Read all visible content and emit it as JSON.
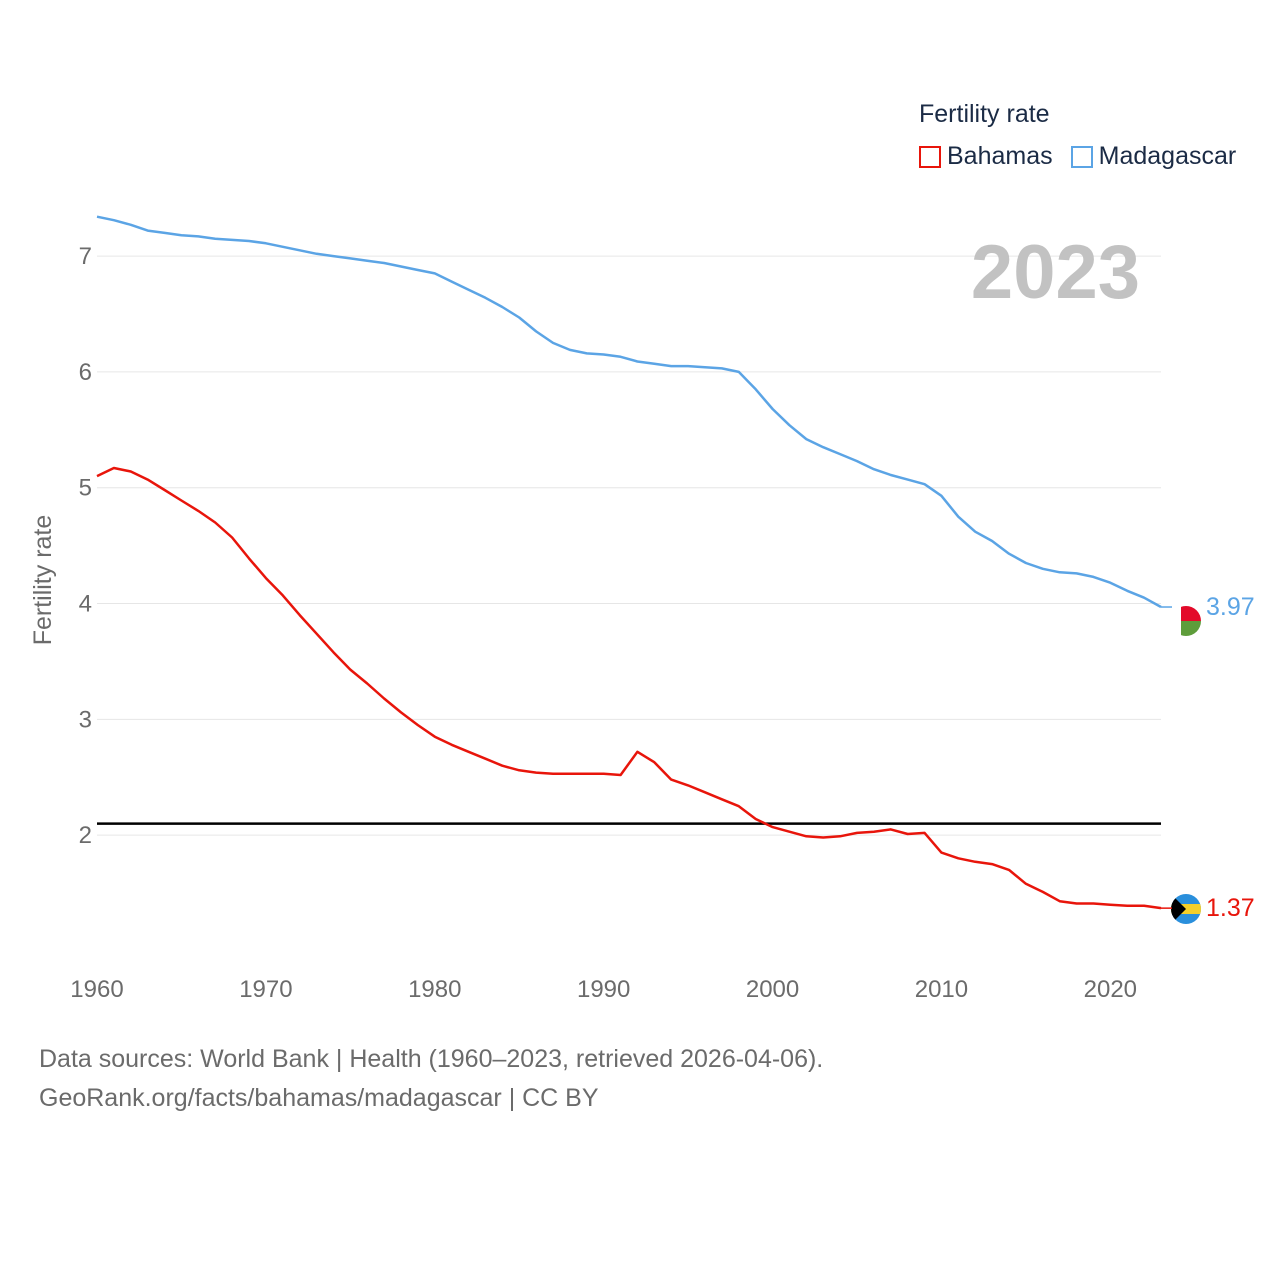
{
  "legend": {
    "title": "Fertility rate",
    "items": [
      {
        "label": "Bahamas",
        "color": "#e8150b"
      },
      {
        "label": "Madagascar",
        "color": "#5ba4e5"
      }
    ]
  },
  "year_label": "2023",
  "footer": {
    "line1": "Data sources: World Bank | Health (1960–2023, retrieved 2026-04-06).",
    "line2": "GeoRank.org/facts/bahamas/madagascar | CC BY"
  },
  "chart_data": {
    "type": "line",
    "ylabel": "Fertility rate",
    "xlim": [
      1960,
      2023
    ],
    "ylim": [
      1.0,
      7.7
    ],
    "x_ticks": [
      1960,
      1970,
      1980,
      1990,
      2000,
      2010,
      2020
    ],
    "y_ticks": [
      2,
      3,
      4,
      5,
      6,
      7
    ],
    "reference_line": {
      "value": 2.1,
      "color": "#000000"
    },
    "end_labels": [
      {
        "series": "Madagascar",
        "value": "3.97",
        "color": "#5ba4e5"
      },
      {
        "series": "Bahamas",
        "value": "1.37",
        "color": "#e8150b"
      }
    ],
    "x": [
      1960,
      1961,
      1962,
      1963,
      1964,
      1965,
      1966,
      1967,
      1968,
      1969,
      1970,
      1971,
      1972,
      1973,
      1974,
      1975,
      1976,
      1977,
      1978,
      1979,
      1980,
      1981,
      1982,
      1983,
      1984,
      1985,
      1986,
      1987,
      1988,
      1989,
      1990,
      1991,
      1992,
      1993,
      1994,
      1995,
      1996,
      1997,
      1998,
      1999,
      2000,
      2001,
      2002,
      2003,
      2004,
      2005,
      2006,
      2007,
      2008,
      2009,
      2010,
      2011,
      2012,
      2013,
      2014,
      2015,
      2016,
      2017,
      2018,
      2019,
      2020,
      2021,
      2022,
      2023
    ],
    "series": [
      {
        "name": "Madagascar",
        "color": "#5ba4e5",
        "values": [
          7.34,
          7.31,
          7.27,
          7.22,
          7.2,
          7.18,
          7.17,
          7.15,
          7.14,
          7.13,
          7.11,
          7.08,
          7.05,
          7.02,
          7.0,
          6.98,
          6.96,
          6.94,
          6.91,
          6.88,
          6.85,
          6.78,
          6.71,
          6.64,
          6.56,
          6.47,
          6.35,
          6.25,
          6.19,
          6.16,
          6.15,
          6.13,
          6.09,
          6.07,
          6.05,
          6.05,
          6.04,
          6.03,
          6.0,
          5.85,
          5.68,
          5.54,
          5.42,
          5.35,
          5.29,
          5.23,
          5.16,
          5.11,
          5.07,
          5.03,
          4.93,
          4.75,
          4.62,
          4.54,
          4.43,
          4.35,
          4.3,
          4.27,
          4.26,
          4.23,
          4.18,
          4.11,
          4.05,
          3.97
        ]
      },
      {
        "name": "Bahamas",
        "color": "#e8150b",
        "values": [
          5.1,
          5.17,
          5.14,
          5.07,
          4.98,
          4.89,
          4.8,
          4.7,
          4.57,
          4.39,
          4.22,
          4.07,
          3.9,
          3.74,
          3.58,
          3.43,
          3.31,
          3.18,
          3.06,
          2.95,
          2.85,
          2.78,
          2.72,
          2.66,
          2.6,
          2.56,
          2.54,
          2.53,
          2.53,
          2.53,
          2.53,
          2.52,
          2.72,
          2.63,
          2.48,
          2.43,
          2.37,
          2.31,
          2.25,
          2.14,
          2.07,
          2.03,
          1.99,
          1.98,
          1.99,
          2.02,
          2.03,
          2.05,
          2.01,
          2.02,
          1.85,
          1.8,
          1.77,
          1.75,
          1.7,
          1.58,
          1.51,
          1.43,
          1.41,
          1.41,
          1.4,
          1.39,
          1.39,
          1.37
        ]
      }
    ]
  }
}
